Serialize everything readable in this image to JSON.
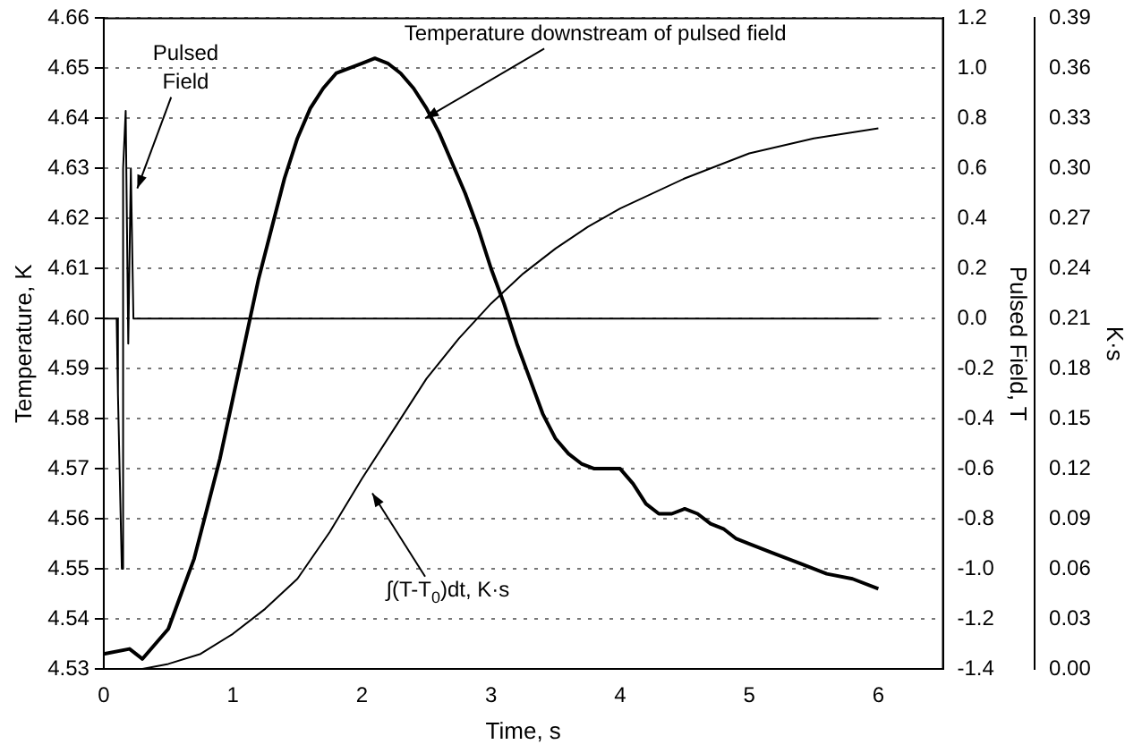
{
  "chart_data": {
    "type": "line",
    "xlabel": "Time, s",
    "ylabel": "Temperature, K",
    "y2label": "Pulsed Field, T",
    "y3label": "K·s",
    "xlim": [
      0,
      6.5
    ],
    "xticks": [
      0,
      1,
      2,
      3,
      4,
      5,
      6
    ],
    "ylim": [
      4.53,
      4.66
    ],
    "yticks": [
      4.53,
      4.54,
      4.55,
      4.56,
      4.57,
      4.58,
      4.59,
      {
        "value": 4.6,
        "label": "4.60"
      },
      4.61,
      4.62,
      4.63,
      4.64,
      4.65,
      4.66
    ],
    "y2lim": [
      -1.4,
      1.2
    ],
    "y2ticks": [
      -1.4,
      -1.2,
      {
        "value": -1,
        "label": "-1.0"
      },
      -0.8,
      -0.6,
      -0.4,
      -0.2,
      {
        "value": 0,
        "label": "0.0"
      },
      0.2,
      0.4,
      0.6,
      0.8,
      {
        "value": 1,
        "label": "1.0"
      },
      1.2
    ],
    "y3lim": [
      0,
      0.39
    ],
    "y3ticks": [
      {
        "value": 0,
        "label": "0.00"
      },
      0.03,
      0.06,
      0.09,
      0.12,
      0.15,
      0.18,
      0.21,
      0.24,
      0.27,
      {
        "value": 0.3,
        "label": "0.30"
      },
      0.33,
      0.36,
      0.39
    ],
    "grid": "y",
    "series": [
      {
        "color": "#000000",
        "x": [
          0,
          0.2,
          0.3,
          0.4,
          0.5,
          0.6,
          0.7,
          0.8,
          0.9,
          1.0,
          1.1,
          1.2,
          1.3,
          1.4,
          1.5,
          1.6,
          1.7,
          1.8,
          1.9,
          2.0,
          2.1,
          2.2,
          2.3,
          2.4,
          2.5,
          2.6,
          2.7,
          2.8,
          2.9,
          3.0,
          3.1,
          3.2,
          3.3,
          3.4,
          3.5,
          3.6,
          3.7,
          3.8,
          3.9,
          4.0,
          4.1,
          4.2,
          4.3,
          4.4,
          4.5,
          4.6,
          4.7,
          4.8,
          4.9,
          5.0,
          5.2,
          5.4,
          5.6,
          5.8,
          6.0
        ],
        "values": [
          4.533,
          4.534,
          4.532,
          4.535,
          4.538,
          4.545,
          4.552,
          4.562,
          4.572,
          4.584,
          4.596,
          4.608,
          4.618,
          4.628,
          4.636,
          4.642,
          4.646,
          4.649,
          4.65,
          4.651,
          4.652,
          4.651,
          4.649,
          4.646,
          4.642,
          4.637,
          4.631,
          4.625,
          4.618,
          4.61,
          4.603,
          4.595,
          4.588,
          4.581,
          4.576,
          4.573,
          4.571,
          4.57,
          4.57,
          4.57,
          4.567,
          4.563,
          4.561,
          4.561,
          4.562,
          4.561,
          4.559,
          4.558,
          4.556,
          4.555,
          4.553,
          4.551,
          4.549,
          4.548,
          4.546
        ]
      },
      {
        "color": "#000000",
        "axis": "y2",
        "x": [
          0,
          0.1,
          0.11,
          0.14,
          0.15,
          0.17,
          0.19,
          0.21,
          0.23,
          6
        ],
        "values": [
          0,
          0,
          -0.3,
          -1.0,
          0.6,
          0.83,
          -0.1,
          0.6,
          0,
          0
        ]
      },
      {
        "color": "#000000",
        "axis": "y3",
        "x": [
          0.3,
          0.5,
          0.75,
          1.0,
          1.25,
          1.5,
          1.75,
          2.0,
          2.25,
          2.5,
          2.75,
          3.0,
          3.25,
          3.5,
          3.75,
          4.0,
          4.5,
          5.0,
          5.5,
          6.0
        ],
        "values": [
          0,
          0.003,
          0.009,
          0.021,
          0.036,
          0.054,
          0.082,
          0.114,
          0.144,
          0.174,
          0.198,
          0.219,
          0.237,
          0.252,
          0.265,
          0.276,
          0.294,
          0.309,
          0.318,
          0.324
        ]
      }
    ],
    "annotations": [
      {
        "text": "Pulsed Field",
        "x": 0.26,
        "y": 4.626
      },
      {
        "text": "Temperature downstream of pulsed field",
        "x": 2.49,
        "y": 4.64
      },
      "∫(T-T$_{0}$)dt, K·s"
    ]
  }
}
